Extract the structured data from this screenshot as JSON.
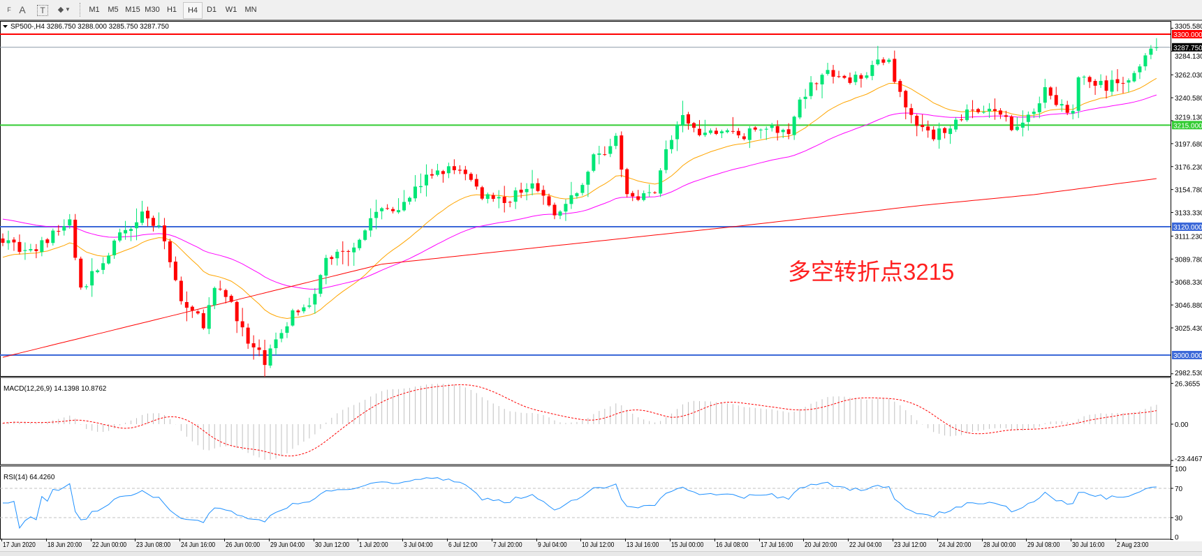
{
  "toolbar": {
    "tools": [
      {
        "icon": "period-separator-icon",
        "label": "F"
      },
      {
        "icon": "text-icon",
        "label": "A"
      },
      {
        "icon": "text-label-icon",
        "label": "T"
      },
      {
        "icon": "shapes-icon",
        "label": "◆"
      }
    ],
    "timeframes": [
      "M1",
      "M5",
      "M15",
      "M30",
      "H1",
      "H4",
      "D1",
      "W1",
      "MN"
    ],
    "active_timeframe": "H4"
  },
  "chart": {
    "header": "SP500-,H4  3286.750 3288.000 3285.750 3287.750",
    "annotation": "多空转折点3215",
    "price_ticks": [
      "3305.580",
      "3284.130",
      "3262.030",
      "3240.580",
      "3219.130",
      "3197.680",
      "3176.230",
      "3154.780",
      "3133.330",
      "3111.230",
      "3089.780",
      "3068.330",
      "3046.880",
      "3025.430",
      "2982.530"
    ],
    "levels": [
      {
        "label": "3300.000",
        "price": 3300,
        "color": "#ff0000"
      },
      {
        "label": "3215.000",
        "price": 3215,
        "color": "#33cc33"
      },
      {
        "label": "3120.000",
        "price": 3120,
        "color": "#3b68d8"
      },
      {
        "label": "3000.000",
        "price": 3000,
        "color": "#3b68d8"
      }
    ],
    "bid": {
      "label": "3287.750",
      "price": 3287.75
    },
    "colors": {
      "bull": "#00e676",
      "bear": "#ff0000",
      "ma_fast": "#ffa500",
      "ma_mid": "#ff00ff",
      "ma_slow": "#ff0000",
      "rsi": "#1e90ff",
      "macd_hist": "#c0c0c0",
      "macd_signal": "#ff0000"
    }
  },
  "macd": {
    "label": "MACD(12,26,9) 14.1398 10.8762",
    "ticks": [
      "26.3655",
      "0.00",
      "-23.4467"
    ]
  },
  "rsi": {
    "label": "RSI(14) 64.4260",
    "ticks": [
      "100",
      "70",
      "30",
      "0"
    ]
  },
  "dates": [
    "17 Jun 2020",
    "18 Jun 20:00",
    "22 Jun 00:00",
    "23 Jun 08:00",
    "24 Jun 16:00",
    "26 Jun 00:00",
    "29 Jun 04:00",
    "30 Jun 12:00",
    "1 Jul 20:00",
    "3 Jul 04:00",
    "6 Jul 12:00",
    "7 Jul 20:00",
    "9 Jul 04:00",
    "10 Jul 12:00",
    "13 Jul 16:00",
    "15 Jul 00:00",
    "16 Jul 08:00",
    "17 Jul 16:00",
    "20 Jul 20:00",
    "22 Jul 04:00",
    "23 Jul 12:00",
    "24 Jul 20:00",
    "28 Jul 00:00",
    "29 Jul 08:00",
    "30 Jul 16:00",
    "2 Aug 23:00"
  ],
  "chart_data": {
    "type": "candlestick",
    "symbol": "SP500-",
    "timeframe": "H4",
    "bars": 208,
    "y_range": [
      2982.53,
      3305.58
    ],
    "close_path": [
      [
        0,
        3110
      ],
      [
        5,
        3095
      ],
      [
        12,
        3125
      ],
      [
        14,
        3060
      ],
      [
        21,
        3110
      ],
      [
        25,
        3135
      ],
      [
        29,
        3110
      ],
      [
        32,
        3050
      ],
      [
        36,
        3030
      ],
      [
        38,
        3060
      ],
      [
        41,
        3050
      ],
      [
        44,
        3010
      ],
      [
        47,
        2995
      ],
      [
        50,
        3020
      ],
      [
        52,
        3040
      ],
      [
        56,
        3055
      ],
      [
        58,
        3090
      ],
      [
        62,
        3100
      ],
      [
        64,
        3110
      ],
      [
        67,
        3135
      ],
      [
        71,
        3140
      ],
      [
        77,
        3170
      ],
      [
        82,
        3175
      ],
      [
        86,
        3150
      ],
      [
        91,
        3145
      ],
      [
        95,
        3165
      ],
      [
        99,
        3130
      ],
      [
        103,
        3150
      ],
      [
        106,
        3185
      ],
      [
        110,
        3200
      ],
      [
        112,
        3150
      ],
      [
        117,
        3150
      ],
      [
        119,
        3195
      ],
      [
        122,
        3220
      ],
      [
        125,
        3205
      ],
      [
        129,
        3210
      ],
      [
        133,
        3205
      ],
      [
        137,
        3215
      ],
      [
        141,
        3205
      ],
      [
        143,
        3240
      ],
      [
        147,
        3265
      ],
      [
        150,
        3260
      ],
      [
        152,
        3255
      ],
      [
        156,
        3270
      ],
      [
        159,
        3275
      ],
      [
        162,
        3230
      ],
      [
        165,
        3210
      ],
      [
        167,
        3205
      ],
      [
        170,
        3215
      ],
      [
        174,
        3230
      ],
      [
        178,
        3225
      ],
      [
        181,
        3215
      ],
      [
        184,
        3220
      ],
      [
        187,
        3250
      ],
      [
        189,
        3235
      ],
      [
        192,
        3225
      ],
      [
        193,
        3260
      ],
      [
        198,
        3250
      ],
      [
        200,
        3255
      ],
      [
        203,
        3262
      ],
      [
        205,
        3285
      ],
      [
        207,
        3287.75
      ]
    ],
    "ma_fast": {
      "period": 20,
      "start": 3090
    },
    "ma_mid": {
      "period": 50,
      "start": 3128
    },
    "ma_slow_path": [
      [
        0,
        2998
      ],
      [
        68,
        3085
      ],
      [
        131,
        3120
      ],
      [
        165,
        3140
      ],
      [
        185,
        3150
      ],
      [
        207,
        3165
      ]
    ],
    "macd": {
      "fast": 12,
      "slow": 26,
      "signal": 9,
      "range": [
        -23.4467,
        26.3655
      ],
      "last_main": 14.1398,
      "last_signal": 10.8762
    },
    "rsi": {
      "period": 14,
      "range": [
        0,
        100
      ],
      "levels": [
        70,
        30
      ],
      "last": 64.426
    }
  }
}
